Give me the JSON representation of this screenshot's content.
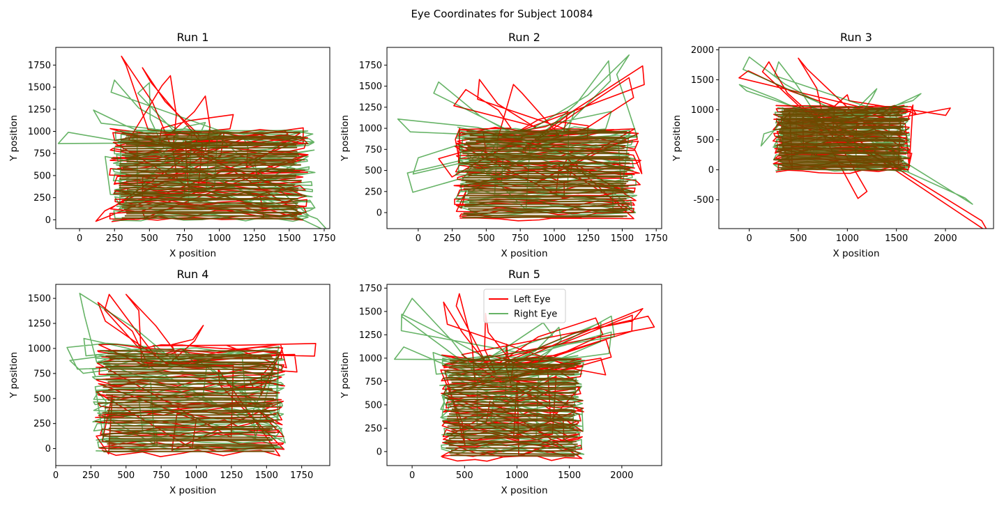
{
  "figure": {
    "title": "Eye Coordinates for Subject 10084"
  },
  "chart_data": [
    {
      "type": "line",
      "title": "Run 1",
      "xlabel": "X position",
      "ylabel": "Y position",
      "xlim": [
        -170,
        1790
      ],
      "ylim": [
        -100,
        1950
      ],
      "xticks": [
        0,
        250,
        500,
        750,
        1000,
        1250,
        1500,
        1750
      ],
      "yticks": [
        0,
        250,
        500,
        750,
        1000,
        1250,
        1500,
        1750
      ],
      "series": [
        {
          "name": "Left Eye",
          "color": "#ff0000",
          "opacity": 1.0,
          "fixation_region": {
            "x": [
              200,
              1650
            ],
            "y": [
              -20,
              1040
            ]
          },
          "excursions": [
            [
              300,
              1850
            ],
            [
              450,
              1720
            ],
            [
              650,
              1630
            ],
            [
              900,
              1400
            ],
            [
              1100,
              1190
            ],
            [
              1600,
              1040
            ],
            [
              180,
              100
            ]
          ]
        },
        {
          "name": "Right Eye",
          "color": "#008000",
          "opacity": 0.6,
          "fixation_region": {
            "x": [
              220,
              1700
            ],
            "y": [
              -10,
              1030
            ]
          },
          "excursions": [
            [
              -80,
              990
            ],
            [
              100,
              1240
            ],
            [
              250,
              1580
            ],
            [
              500,
              1550
            ],
            [
              900,
              1100
            ],
            [
              1700,
              10
            ]
          ]
        }
      ]
    },
    {
      "type": "line",
      "title": "Run 2",
      "xlabel": "X position",
      "ylabel": "Y position",
      "xlim": [
        -230,
        1790
      ],
      "ylim": [
        -190,
        1960
      ],
      "xticks": [
        0,
        250,
        500,
        750,
        1000,
        1250,
        1500,
        1750
      ],
      "yticks": [
        0,
        250,
        500,
        750,
        1000,
        1250,
        1500,
        1750
      ],
      "series": [
        {
          "name": "Left Eye",
          "color": "#ff0000",
          "opacity": 1.0,
          "fixation_region": {
            "x": [
              250,
              1650
            ],
            "y": [
              -100,
              1030
            ]
          },
          "excursions": [
            [
              350,
              1460
            ],
            [
              450,
              1580
            ],
            [
              700,
              1520
            ],
            [
              1100,
              1200
            ],
            [
              1550,
              1600
            ],
            [
              1650,
              1740
            ],
            [
              1250,
              1030
            ],
            [
              150,
              640
            ]
          ]
        },
        {
          "name": "Right Eye",
          "color": "#008000",
          "opacity": 0.6,
          "fixation_region": {
            "x": [
              260,
              1620
            ],
            "y": [
              -20,
              1020
            ]
          },
          "excursions": [
            [
              -150,
              1110
            ],
            [
              -80,
              470
            ],
            [
              0,
              650
            ],
            [
              150,
              1550
            ],
            [
              1150,
              1210
            ],
            [
              1420,
              1200
            ],
            [
              1550,
              1870
            ],
            [
              1400,
              1800
            ]
          ]
        }
      ]
    },
    {
      "type": "line",
      "title": "Run 3",
      "xlabel": "X position",
      "ylabel": "Y position",
      "xlim": [
        -310,
        2490
      ],
      "ylim": [
        -980,
        2040
      ],
      "xticks": [
        0,
        500,
        1000,
        1500,
        2000
      ],
      "yticks": [
        -500,
        0,
        500,
        1000,
        1500,
        2000
      ],
      "series": [
        {
          "name": "Left Eye",
          "color": "#ff0000",
          "opacity": 1.0,
          "fixation_region": {
            "x": [
              230,
              1650
            ],
            "y": [
              -30,
              1080
            ]
          },
          "excursions": [
            [
              -10,
              1650
            ],
            [
              200,
              1800
            ],
            [
              500,
              1860
            ],
            [
              1000,
              1250
            ],
            [
              1650,
              1050
            ],
            [
              2050,
              1030
            ],
            [
              1200,
              -360
            ],
            [
              2370,
              -850
            ]
          ]
        },
        {
          "name": "Right Eye",
          "color": "#008000",
          "opacity": 0.6,
          "fixation_region": {
            "x": [
              230,
              1650
            ],
            "y": [
              -20,
              1060
            ]
          },
          "excursions": [
            [
              -100,
              1420
            ],
            [
              0,
              1880
            ],
            [
              300,
              1800
            ],
            [
              1300,
              1350
            ],
            [
              1750,
              1270
            ],
            [
              2200,
              -470
            ],
            [
              150,
              600
            ]
          ]
        }
      ]
    },
    {
      "type": "line",
      "title": "Run 4",
      "xlabel": "X position",
      "ylabel": "Y position",
      "xlim": [
        0,
        1950
      ],
      "ylim": [
        -170,
        1640
      ],
      "xticks": [
        0,
        250,
        500,
        750,
        1000,
        1250,
        1500,
        1750
      ],
      "yticks": [
        0,
        250,
        500,
        750,
        1000,
        1250,
        1500
      ],
      "series": [
        {
          "name": "Left Eye",
          "color": "#ff0000",
          "opacity": 1.0,
          "fixation_region": {
            "x": [
              270,
              1650
            ],
            "y": [
              -70,
              1040
            ]
          },
          "excursions": [
            [
              300,
              1460
            ],
            [
              380,
              1540
            ],
            [
              500,
              1540
            ],
            [
              1050,
              1230
            ],
            [
              1600,
              1040
            ],
            [
              1850,
              1050
            ],
            [
              1700,
              940
            ]
          ]
        },
        {
          "name": "Right Eye",
          "color": "#008000",
          "opacity": 0.6,
          "fixation_region": {
            "x": [
              250,
              1640
            ],
            "y": [
              -20,
              1020
            ]
          },
          "excursions": [
            [
              170,
              1550
            ],
            [
              80,
              1010
            ],
            [
              100,
              880
            ],
            [
              200,
              1100
            ],
            [
              700,
              1020
            ],
            [
              1600,
              200
            ]
          ]
        }
      ]
    },
    {
      "type": "line",
      "title": "Run 5",
      "xlabel": "X position",
      "ylabel": "Y position",
      "xlim": [
        -240,
        2380
      ],
      "ylim": [
        -150,
        1790
      ],
      "xticks": [
        0,
        500,
        1000,
        1500,
        2000
      ],
      "yticks": [
        0,
        250,
        500,
        750,
        1000,
        1250,
        1500,
        1750
      ],
      "legend_position": "upper center",
      "series": [
        {
          "name": "Left Eye",
          "color": "#ff0000",
          "opacity": 1.0,
          "fixation_region": {
            "x": [
              260,
              1650
            ],
            "y": [
              -80,
              1040
            ]
          },
          "excursions": [
            [
              300,
              1600
            ],
            [
              450,
              1690
            ],
            [
              700,
              1480
            ],
            [
              900,
              1150
            ],
            [
              1750,
              1430
            ],
            [
              1850,
              1200
            ],
            [
              2100,
              1460
            ],
            [
              2250,
              1450
            ],
            [
              2200,
              1530
            ],
            [
              1800,
              1000
            ]
          ]
        },
        {
          "name": "Right Eye",
          "color": "#008000",
          "opacity": 0.6,
          "fixation_region": {
            "x": [
              250,
              1650
            ],
            "y": [
              -20,
              1030
            ]
          },
          "excursions": [
            [
              -100,
              1470
            ],
            [
              0,
              1640
            ],
            [
              -80,
              1120
            ],
            [
              200,
              1060
            ],
            [
              1250,
              1380
            ],
            [
              1800,
              1380
            ],
            [
              1900,
              1450
            ],
            [
              1400,
              1330
            ],
            [
              1900,
              1280
            ]
          ]
        }
      ]
    }
  ]
}
